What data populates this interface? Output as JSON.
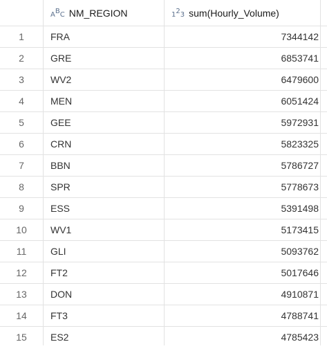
{
  "columns": {
    "index": "",
    "region": {
      "label": "NM_REGION",
      "type_icon": "text-type-icon",
      "icon_glyphs": [
        "A",
        "B",
        "C"
      ]
    },
    "volume": {
      "label": "sum(Hourly_Volume)",
      "type_icon": "numeric-type-icon",
      "icon_glyphs": [
        "1",
        "2",
        "3"
      ]
    }
  },
  "rows": [
    {
      "index": "1",
      "region": "FRA",
      "volume": "7344142"
    },
    {
      "index": "2",
      "region": "GRE",
      "volume": "6853741"
    },
    {
      "index": "3",
      "region": "WV2",
      "volume": "6479600"
    },
    {
      "index": "4",
      "region": "MEN",
      "volume": "6051424"
    },
    {
      "index": "5",
      "region": "GEE",
      "volume": "5972931"
    },
    {
      "index": "6",
      "region": "CRN",
      "volume": "5823325"
    },
    {
      "index": "7",
      "region": "BBN",
      "volume": "5786727"
    },
    {
      "index": "8",
      "region": "SPR",
      "volume": "5778673"
    },
    {
      "index": "9",
      "region": "ESS",
      "volume": "5391498"
    },
    {
      "index": "10",
      "region": "WV1",
      "volume": "5173415"
    },
    {
      "index": "11",
      "region": "GLI",
      "volume": "5093762"
    },
    {
      "index": "12",
      "region": "FT2",
      "volume": "5017646"
    },
    {
      "index": "13",
      "region": "DON",
      "volume": "4910871"
    },
    {
      "index": "14",
      "region": "FT3",
      "volume": "4788741"
    },
    {
      "index": "15",
      "region": "ES2",
      "volume": "4785423"
    }
  ]
}
